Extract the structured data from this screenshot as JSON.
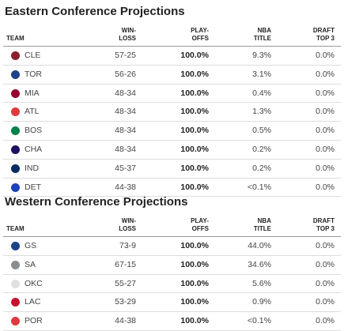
{
  "tables": [
    {
      "title": "Eastern Conference Projections",
      "headers": [
        [
          "TEAM"
        ],
        [
          "WIN-",
          "LOSS"
        ],
        [
          "PLAY-",
          "OFFS"
        ],
        [
          "NBA",
          "TITLE"
        ],
        [
          "DRAFT",
          "TOP 3"
        ]
      ],
      "rows": [
        [
          "CLE",
          "57-25",
          "100.0%",
          "9.3%",
          "0.0%"
        ],
        [
          "TOR",
          "56-26",
          "100.0%",
          "3.1%",
          "0.0%"
        ],
        [
          "MIA",
          "48-34",
          "100.0%",
          "0.4%",
          "0.0%"
        ],
        [
          "ATL",
          "48-34",
          "100.0%",
          "1.3%",
          "0.0%"
        ],
        [
          "BOS",
          "48-34",
          "100.0%",
          "0.5%",
          "0.0%"
        ],
        [
          "CHA",
          "48-34",
          "100.0%",
          "0.2%",
          "0.0%"
        ],
        [
          "IND",
          "45-37",
          "100.0%",
          "0.2%",
          "0.0%"
        ],
        [
          "DET",
          "44-38",
          "100.0%",
          "<0.1%",
          "0.0%"
        ]
      ]
    },
    {
      "title": "Western Conference Projections",
      "headers": [
        [
          "TEAM"
        ],
        [
          "WIN-",
          "LOSS"
        ],
        [
          "PLAY-",
          "OFFS"
        ],
        [
          "NBA",
          "TITLE"
        ],
        [
          "DRAFT",
          "TOP 3"
        ]
      ],
      "rows": [
        [
          "GS",
          "73-9",
          "100.0%",
          "44.0%",
          "0.0%"
        ],
        [
          "SA",
          "67-15",
          "100.0%",
          "34.6%",
          "0.0%"
        ],
        [
          "OKC",
          "55-27",
          "100.0%",
          "5.6%",
          "0.0%"
        ],
        [
          "LAC",
          "53-29",
          "100.0%",
          "0.9%",
          "0.0%"
        ],
        [
          "POR",
          "44-38",
          "100.0%",
          "<0.1%",
          "0.0%"
        ]
      ]
    }
  ]
}
